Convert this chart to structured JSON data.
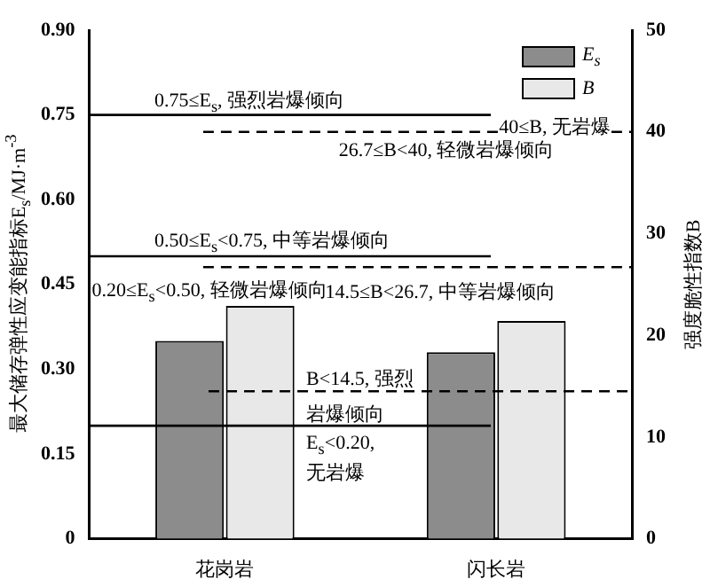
{
  "chart_data": {
    "type": "bar",
    "categories": [
      "花岗岩",
      "闪长岩"
    ],
    "ylabel": "最大储存弹性应变能指标E$_{s}$/MJ·m$^{-3}$",
    "y2label": "强度脆性指数B",
    "series": [
      {
        "name": "E$_{s}$",
        "color": "#8c8c8c",
        "values": [
          0.35,
          0.33
        ]
      },
      {
        "name": "B",
        "color": "#e8e8e8",
        "values": [
          22.9,
          21.4
        ],
        "axis": "y2"
      }
    ],
    "ylim": [
      0,
      0.9
    ],
    "yticks": [
      0,
      {
        "value": 0.15,
        "label": "0.15"
      },
      {
        "value": 0.3,
        "label": "0.30"
      },
      {
        "value": 0.45,
        "label": "0.45"
      },
      {
        "value": 0.6,
        "label": "0.60"
      },
      {
        "value": 0.75,
        "label": "0.75"
      },
      {
        "value": 0.9,
        "label": "0.90"
      }
    ],
    "y2lim": [
      0,
      50
    ],
    "y2ticks": [
      0,
      10,
      20,
      30,
      40,
      50
    ],
    "ref_lines": [
      {
        "axis": "y",
        "value": 0.75,
        "label": "0.75≤E$_{s}$, 强烈岩爆倾向",
        "color": "#000000",
        "line_style": "solid"
      },
      {
        "axis": "y2",
        "value": 40,
        "label": "40≤B, 无岩爆",
        "color": "#000000",
        "line_style": "dashed"
      },
      {
        "axis": "y",
        "value": 0.5,
        "label": "0.50≤E$_{s}$<0.75, 中等岩爆倾向",
        "color": "#000000",
        "line_style": "solid"
      },
      {
        "axis": "y2",
        "value": 26.7,
        "label": "14.5≤B<26.7, 中等岩爆倾向",
        "color": "#000000",
        "line_style": "dashed"
      },
      {
        "axis": "y2",
        "value": 14.5,
        "label": "B<14.5, 强烈岩爆倾向",
        "color": "#000000",
        "line_style": "dashed"
      },
      {
        "axis": "y",
        "value": 0.2,
        "label": "E$_{s}$<0.20, 无岩爆",
        "color": "#000000",
        "line_style": "solid"
      }
    ],
    "annotations": [
      "26.7≤B<40, 轻微岩爆倾向",
      "0.20≤E$_{s}$<0.50, 轻微岩爆倾向"
    ],
    "legend": "top right",
    "grid": false
  }
}
